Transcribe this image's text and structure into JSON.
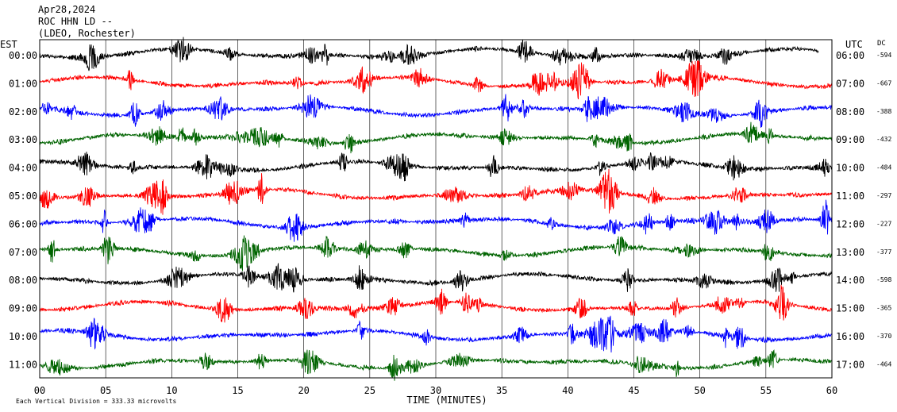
{
  "header": {
    "date": "Apr28,2024",
    "station": "ROC HHN LD --",
    "network": "(LDEO, Rochester)"
  },
  "chart_data": {
    "type": "line",
    "title": "",
    "left_axis_label": "EST",
    "right_axis_label": "UTC",
    "dc_label": "DC",
    "xlabel": "TIME (MINUTES)",
    "x_ticks": [
      "00",
      "05",
      "10",
      "15",
      "20",
      "25",
      "30",
      "35",
      "40",
      "45",
      "50",
      "55",
      "60"
    ],
    "xlim": [
      0,
      60
    ],
    "grid": "vertical lines every 5 minutes",
    "scale_note": "Each Vertical Division =  333.33 microvolts",
    "traces": [
      {
        "est": "00:00",
        "utc": "06:00",
        "dc": "-594",
        "color": "#000000",
        "end_minute": 59
      },
      {
        "est": "01:00",
        "utc": "07:00",
        "dc": "-667",
        "color": "#ff0000",
        "end_minute": 60
      },
      {
        "est": "02:00",
        "utc": "08:00",
        "dc": "-388",
        "color": "#0000ff",
        "end_minute": 60
      },
      {
        "est": "03:00",
        "utc": "09:00",
        "dc": "-432",
        "color": "#006400",
        "end_minute": 60
      },
      {
        "est": "04:00",
        "utc": "10:00",
        "dc": "-484",
        "color": "#000000",
        "end_minute": 60
      },
      {
        "est": "05:00",
        "utc": "11:00",
        "dc": "-297",
        "color": "#ff0000",
        "end_minute": 60
      },
      {
        "est": "06:00",
        "utc": "12:00",
        "dc": "-227",
        "color": "#0000ff",
        "end_minute": 60
      },
      {
        "est": "07:00",
        "utc": "13:00",
        "dc": "-377",
        "color": "#006400",
        "end_minute": 60
      },
      {
        "est": "08:00",
        "utc": "14:00",
        "dc": "-598",
        "color": "#000000",
        "end_minute": 60
      },
      {
        "est": "09:00",
        "utc": "15:00",
        "dc": "-365",
        "color": "#ff0000",
        "end_minute": 60
      },
      {
        "est": "10:00",
        "utc": "16:00",
        "dc": "-370",
        "color": "#0000ff",
        "end_minute": 60
      },
      {
        "est": "11:00",
        "utc": "17:00",
        "dc": "-464",
        "color": "#006400",
        "end_minute": 60
      }
    ]
  }
}
